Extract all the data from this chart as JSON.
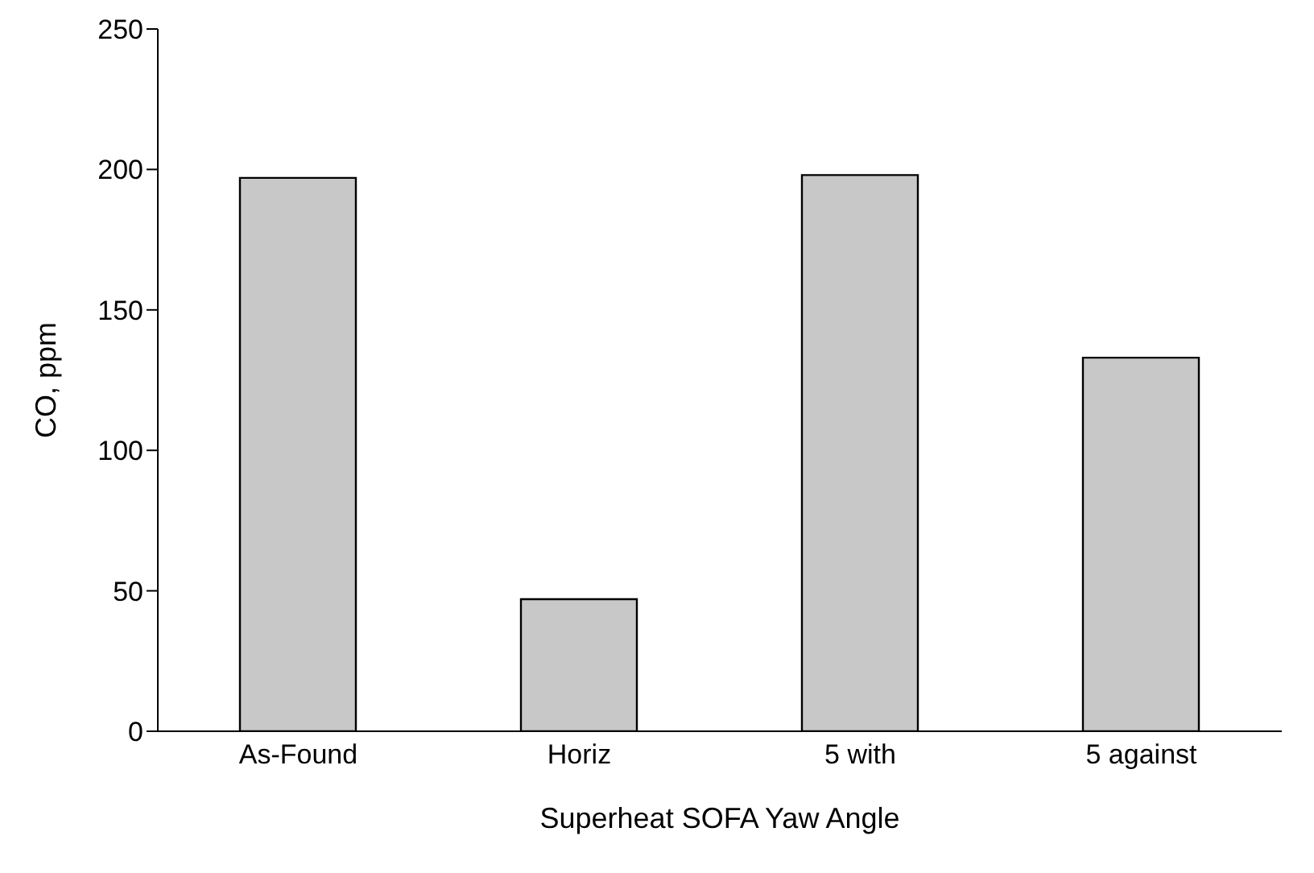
{
  "chart_data": {
    "type": "bar",
    "xlabel": "Superheat SOFA Yaw Angle",
    "ylabel": "CO, ppm",
    "categories": [
      "As-Found",
      "Horiz",
      "5 with",
      "5 against"
    ],
    "values": [
      197,
      47,
      198,
      133
    ],
    "color": "#c8c8c8",
    "ylim": [
      0,
      250
    ],
    "yticks": [
      0,
      50,
      100,
      150,
      200,
      250
    ],
    "grid": false,
    "legend": false
  }
}
